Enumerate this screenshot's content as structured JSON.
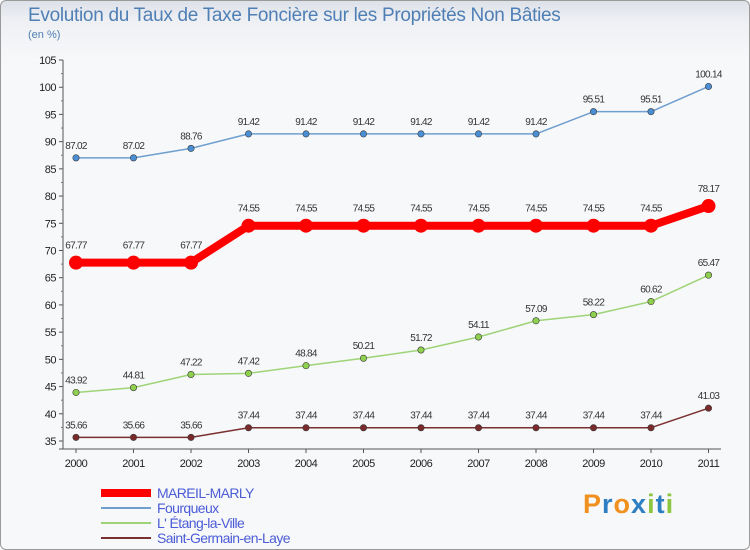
{
  "title": "Evolution du Taux de Taxe Foncière sur les Propriétés Non Bâties",
  "unit_label": "(en %)",
  "logo": {
    "text": "Proxiti",
    "colors": [
      "#f0901e",
      "#2e7fc2",
      "#f0901e",
      "#2e7fc2",
      "#8cc63e",
      "#2e7fc2",
      "#8cc63e"
    ]
  },
  "chart_data": {
    "type": "line",
    "title": "Evolution du Taux de Taxe Foncière sur les Propriétés Non Bâties",
    "ylabel": "(en %)",
    "xlabel": "",
    "x": [
      "2000",
      "2001",
      "2002",
      "2003",
      "2004",
      "2005",
      "2006",
      "2007",
      "2008",
      "2009",
      "2010",
      "2011"
    ],
    "ylim": [
      35,
      105
    ],
    "yticks": [
      35,
      40,
      45,
      50,
      55,
      60,
      65,
      70,
      75,
      80,
      85,
      90,
      95,
      100,
      105
    ],
    "grid": false,
    "legend_position": "bottom-left",
    "series": [
      {
        "name": "MAREIL-MARLY",
        "color": "#ff0000",
        "marker_color": "#ff0000",
        "emphasis": true,
        "values": [
          67.77,
          67.77,
          67.77,
          74.55,
          74.55,
          74.55,
          74.55,
          74.55,
          74.55,
          74.55,
          74.55,
          78.17
        ],
        "labels": [
          "67.77",
          "67.77",
          "67.77",
          "74.55",
          "74.55",
          "74.55",
          "74.55",
          "74.55",
          "74.55",
          "74.55",
          "74.55",
          "78.17"
        ]
      },
      {
        "name": "Fourqueux",
        "color": "#6f9fcf",
        "marker_color": "#4a8fd4",
        "emphasis": false,
        "values": [
          87.02,
          87.02,
          88.76,
          91.42,
          91.42,
          91.42,
          91.42,
          91.42,
          91.42,
          95.51,
          95.51,
          100.14
        ],
        "labels": [
          "87.02",
          "87.02",
          "88.76",
          "91.42",
          "91.42",
          "91.42",
          "91.42",
          "91.42",
          "91.42",
          "95.51",
          "95.51",
          "100.14"
        ]
      },
      {
        "name": "L' Étang-la-Ville",
        "color": "#9ed477",
        "marker_color": "#8fd14f",
        "emphasis": false,
        "values": [
          43.92,
          44.81,
          47.22,
          47.42,
          48.84,
          50.21,
          51.72,
          54.11,
          57.09,
          58.22,
          60.62,
          65.47
        ],
        "labels": [
          "43.92",
          "44.81",
          "47.22",
          "47.42",
          "48.84",
          "50.21",
          "51.72",
          "54.11",
          "57.09",
          "58.22",
          "60.62",
          "65.47"
        ]
      },
      {
        "name": "Saint-Germain-en-Laye",
        "color": "#7a3030",
        "marker_color": "#7a2a2a",
        "emphasis": false,
        "values": [
          35.66,
          35.66,
          35.66,
          37.44,
          37.44,
          37.44,
          37.44,
          37.44,
          37.44,
          37.44,
          37.44,
          41.03
        ],
        "labels": [
          "35.66",
          "35.66",
          "35.66",
          "37.44",
          "37.44",
          "37.44",
          "37.44",
          "37.44",
          "37.44",
          "37.44",
          "37.44",
          "41.03"
        ]
      }
    ]
  }
}
